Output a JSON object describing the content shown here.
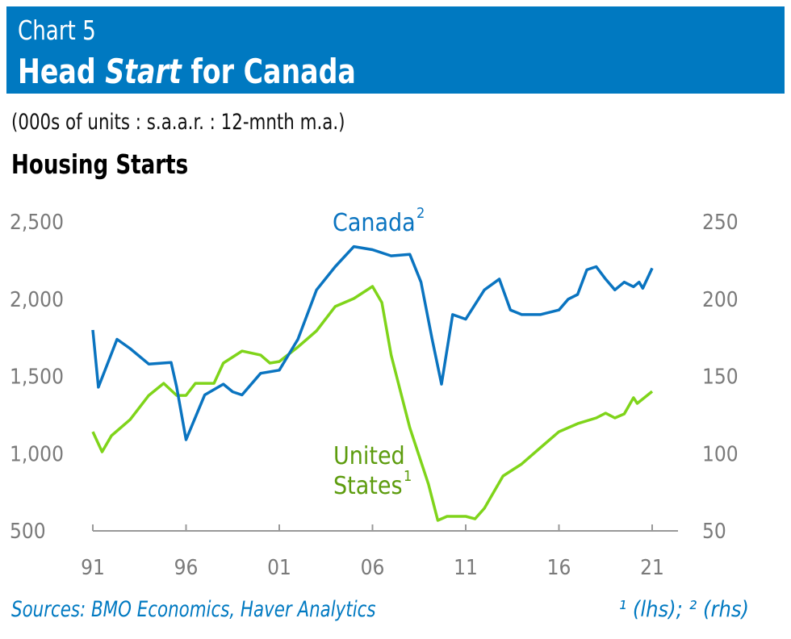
{
  "header": {
    "chart_number": "Chart 5",
    "title_pre": "Head ",
    "title_italic": "Start",
    "title_post": " for Canada"
  },
  "units": "(000s of units : s.a.a.r. : 12-mnth m.a.)",
  "footer": {
    "sources": "Sources: BMO Economics, Haver Analytics",
    "note": "¹ (lhs); ² (rhs)"
  },
  "colors": {
    "banner": "#0079c1",
    "canada": "#0a74c0",
    "us": "#7fd41a",
    "us_label": "#5d9c0e",
    "axis_text": "#7a7a7a"
  },
  "chart_data": {
    "type": "line",
    "title": "Housing Starts",
    "x_ticks": [
      "91",
      "96",
      "01",
      "06",
      "11",
      "16",
      "21"
    ],
    "xlim": [
      1991,
      2021
    ],
    "left_axis": {
      "ylim": [
        500,
        2500
      ],
      "ticks": [
        "500",
        "1,000",
        "1,500",
        "2,000",
        "2,500"
      ]
    },
    "right_axis": {
      "ylim": [
        50,
        250
      ],
      "ticks": [
        "50",
        "100",
        "150",
        "200",
        "250"
      ]
    },
    "grid": false,
    "series": [
      {
        "name": "Canada",
        "label": "Canada",
        "superscript": "2",
        "axis": "right",
        "x": [
          1991.0,
          1991.3,
          1992.3,
          1993,
          1994,
          1995.2,
          1995.5,
          1996,
          1997,
          1998,
          1998.5,
          1999,
          2000,
          2001,
          2002,
          2003,
          2004,
          2005,
          2006,
          2007,
          2008,
          2008.6,
          2009.2,
          2009.7,
          2010.3,
          2011,
          2012,
          2012.8,
          2013.4,
          2014,
          2015,
          2016,
          2016.5,
          2017,
          2017.5,
          2018,
          2018.5,
          2019,
          2019.5,
          2020,
          2020.3,
          2020.5,
          2021
        ],
        "y": [
          180,
          143,
          174,
          168,
          158,
          159,
          143,
          109,
          138,
          145,
          140,
          138,
          152,
          154,
          174,
          206,
          221,
          234,
          232,
          228,
          229,
          211,
          174,
          145,
          190,
          187,
          206,
          213,
          193,
          190,
          190,
          193,
          200,
          203,
          219,
          221,
          213,
          206,
          211,
          208,
          211,
          207,
          220
        ]
      },
      {
        "name": "United States",
        "label": "United\nStates",
        "superscript": "1",
        "axis": "left",
        "x": [
          1991.0,
          1991.5,
          1992,
          1993,
          1994,
          1994.8,
          1995.5,
          1996,
          1996.5,
          1997.5,
          1998,
          1999,
          2000,
          2000.5,
          2001,
          2002,
          2003,
          2004,
          2005,
          2006,
          2006.5,
          2007,
          2008,
          2009,
          2009.5,
          2010,
          2011,
          2011.5,
          2012,
          2013,
          2014,
          2015,
          2016,
          2017,
          2018,
          2018.5,
          2019,
          2019.5,
          2020,
          2020.2,
          2021
        ],
        "y": [
          1142,
          1012,
          1116,
          1220,
          1377,
          1455,
          1377,
          1377,
          1455,
          1455,
          1586,
          1664,
          1638,
          1586,
          1596,
          1690,
          1795,
          1952,
          2004,
          2082,
          1978,
          1638,
          1168,
          803,
          568,
          594,
          594,
          578,
          646,
          855,
          933,
          1038,
          1142,
          1194,
          1231,
          1262,
          1231,
          1257,
          1362,
          1325,
          1403
        ]
      }
    ]
  }
}
